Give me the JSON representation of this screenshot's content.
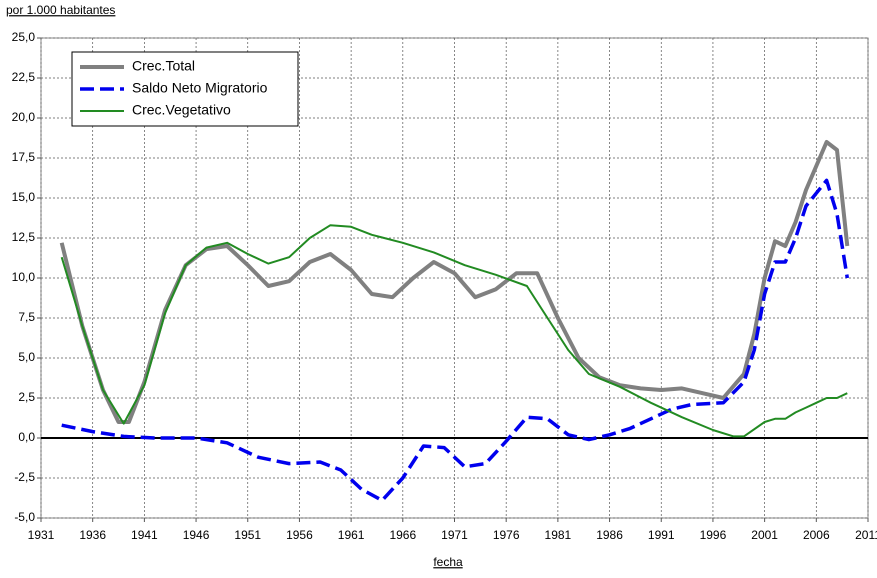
{
  "chart_data": {
    "type": "line",
    "y_label": "por 1.000 habitantes",
    "x_label": "fecha",
    "xlim": [
      1931,
      2011
    ],
    "xticks": [
      1931,
      1936,
      1941,
      1946,
      1951,
      1956,
      1961,
      1966,
      1971,
      1976,
      1981,
      1986,
      1991,
      1996,
      2001,
      2006,
      2011
    ],
    "ylim": [
      -5,
      25
    ],
    "yticks": [
      {
        "value": -5,
        "label": "-5,0"
      },
      {
        "value": -2.5,
        "label": "-2,5"
      },
      {
        "value": 0,
        "label": "0,0"
      },
      {
        "value": 2.5,
        "label": "2,5"
      },
      {
        "value": 5,
        "label": "5,0"
      },
      {
        "value": 7.5,
        "label": "7,5"
      },
      {
        "value": 10,
        "label": "10,0"
      },
      {
        "value": 12.5,
        "label": "12,5"
      },
      {
        "value": 15,
        "label": "15,0"
      },
      {
        "value": 17.5,
        "label": "17,5"
      },
      {
        "value": 20,
        "label": "20,0"
      },
      {
        "value": 22.5,
        "label": "22,5"
      },
      {
        "value": 25,
        "label": "25,0"
      }
    ],
    "grid": true,
    "legend": "upper left",
    "series": [
      {
        "name": "Crec.Total",
        "color": "#808080",
        "style": "solid",
        "x": [
          1933,
          1935,
          1937,
          1938.5,
          1939.5,
          1941,
          1943,
          1945,
          1947,
          1949,
          1951,
          1953,
          1955,
          1957,
          1959,
          1961,
          1963,
          1965,
          1967,
          1969,
          1971,
          1973,
          1975,
          1977,
          1979,
          1981,
          1983,
          1985,
          1987,
          1989,
          1991,
          1993,
          1995,
          1997,
          1999,
          2000,
          2001,
          2002,
          2003,
          2004,
          2005,
          2006,
          2007,
          2008,
          2009
        ],
        "values": [
          12.2,
          7,
          3,
          1,
          1,
          3.5,
          8,
          10.8,
          11.8,
          12,
          10.8,
          9.5,
          9.8,
          11,
          11.5,
          10.5,
          9,
          8.8,
          10,
          11,
          10.3,
          8.8,
          9.3,
          10.3,
          10.3,
          7.5,
          5,
          3.8,
          3.3,
          3.1,
          3,
          3.1,
          2.8,
          2.5,
          4,
          6.5,
          10,
          12.3,
          12,
          13.5,
          15.5,
          17,
          18.5,
          18,
          12
        ]
      },
      {
        "name": "Saldo Neto Migratorio",
        "color": "#0000ee",
        "style": "dashed",
        "x": [
          1933,
          1936,
          1939,
          1942,
          1946,
          1949,
          1952,
          1955,
          1958,
          1960,
          1962,
          1964,
          1966,
          1968,
          1970,
          1972,
          1974,
          1976,
          1978,
          1980,
          1982,
          1984,
          1986,
          1988,
          1990,
          1992,
          1994,
          1997,
          1999,
          2000,
          2001,
          2002,
          2003,
          2004,
          2005,
          2006,
          2007,
          2008,
          2009
        ],
        "values": [
          0.8,
          0.4,
          0.1,
          0,
          0,
          -0.3,
          -1.2,
          -1.6,
          -1.5,
          -2,
          -3.2,
          -3.9,
          -2.5,
          -0.5,
          -0.6,
          -1.8,
          -1.6,
          -0.2,
          1.3,
          1.2,
          0.2,
          -0.1,
          0.2,
          0.6,
          1.2,
          1.8,
          2.1,
          2.2,
          3.5,
          5.5,
          9,
          11,
          11,
          12.5,
          14.5,
          15.3,
          16.1,
          14,
          10
        ]
      },
      {
        "name": "Crec.Vegetativo",
        "color": "#228b22",
        "style": "solid",
        "x": [
          1933,
          1935,
          1937,
          1939,
          1941,
          1943,
          1945,
          1947,
          1949,
          1951,
          1953,
          1955,
          1957,
          1959,
          1961,
          1963,
          1966,
          1969,
          1972,
          1975,
          1978,
          1980,
          1982,
          1984,
          1987,
          1990,
          1993,
          1996,
          1998,
          1999,
          2001,
          2002,
          2003,
          2004,
          2005,
          2006,
          2007,
          2008,
          2009
        ],
        "values": [
          11.3,
          7,
          3,
          0.9,
          3.3,
          7.8,
          10.8,
          11.9,
          12.2,
          11.5,
          10.9,
          11.3,
          12.5,
          13.3,
          13.2,
          12.7,
          12.2,
          11.6,
          10.8,
          10.2,
          9.5,
          7.5,
          5.5,
          4,
          3.2,
          2.2,
          1.3,
          0.5,
          0.1,
          0.1,
          1,
          1.2,
          1.2,
          1.6,
          1.9,
          2.2,
          2.5,
          2.5,
          2.8
        ]
      }
    ]
  }
}
